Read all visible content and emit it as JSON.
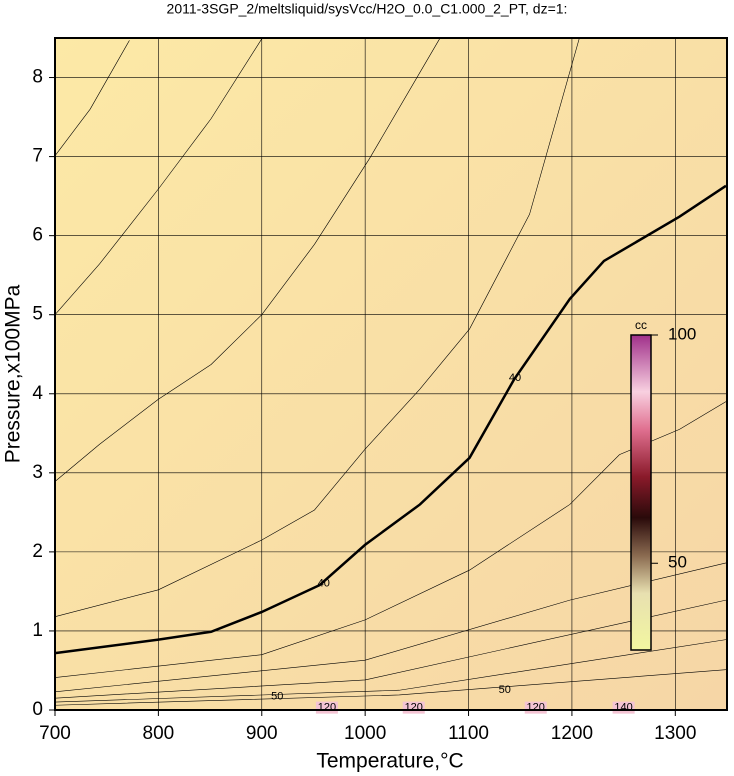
{
  "chart_data": {
    "type": "contour",
    "title": "2011-3SGP_2/meltsliquid/sysVcc/H2O_0.0_C1.000_2_PT, dz=1:",
    "x_label": "Temperature,°C",
    "y_label": "Pressure,x100MPa",
    "xlim": [
      700,
      1350
    ],
    "ylim": [
      0,
      8.5
    ],
    "xticks": [
      700,
      800,
      900,
      1000,
      1100,
      1200,
      1300
    ],
    "yticks": [
      0,
      1,
      2,
      3,
      4,
      5,
      6,
      7,
      8
    ],
    "grid": true,
    "contours": [
      {
        "bold": true,
        "x": [
          700,
          800,
          851,
          900,
          956,
          1000,
          1053,
          1101,
          1144,
          1198,
          1231,
          1304,
          1349
        ],
        "y": [
          0.72,
          0.89,
          0.99,
          1.24,
          1.58,
          2.09,
          2.6,
          3.19,
          4.18,
          5.2,
          5.68,
          6.24,
          6.63
        ]
      },
      {
        "bold": false,
        "x": [
          700,
          734,
          772
        ],
        "y": [
          7.01,
          7.6,
          8.47
        ]
      },
      {
        "bold": false,
        "x": [
          700,
          743,
          800,
          851,
          900
        ],
        "y": [
          5.0,
          5.64,
          6.59,
          7.48,
          8.49
        ]
      },
      {
        "bold": false,
        "x": [
          700,
          743,
          800,
          851,
          900,
          951,
          1004,
          1072
        ],
        "y": [
          2.89,
          3.36,
          3.93,
          4.37,
          5.0,
          5.89,
          6.97,
          8.49
        ]
      },
      {
        "bold": false,
        "x": [
          700,
          800,
          900,
          951,
          1000,
          1053,
          1101,
          1159,
          1207
        ],
        "y": [
          1.18,
          1.52,
          2.15,
          2.53,
          3.3,
          4.06,
          4.82,
          6.27,
          8.49
        ]
      },
      {
        "bold": false,
        "x": [
          700,
          900,
          1000,
          1101,
          1198,
          1246,
          1304,
          1349
        ],
        "y": [
          0.41,
          0.7,
          1.14,
          1.77,
          2.6,
          3.23,
          3.55,
          3.9
        ]
      },
      {
        "bold": false,
        "x": [
          700,
          1000,
          1198,
          1349
        ],
        "y": [
          0.23,
          0.63,
          1.39,
          1.86
        ]
      },
      {
        "bold": false,
        "x": [
          700,
          1000,
          1349
        ],
        "y": [
          0.15,
          0.38,
          1.39
        ]
      },
      {
        "bold": false,
        "x": [
          700,
          1033,
          1349
        ],
        "y": [
          0.1,
          0.25,
          0.89
        ]
      },
      {
        "bold": false,
        "x": [
          700,
          1033,
          1349
        ],
        "y": [
          0.06,
          0.19,
          0.51
        ]
      }
    ],
    "contour_labels": [
      {
        "text": 40,
        "x": 960,
        "y": 1.6
      },
      {
        "text": 40,
        "x": 1145,
        "y": 4.2
      },
      {
        "text": 50,
        "x": 915,
        "y": 0.17
      },
      {
        "text": 50,
        "x": 1135,
        "y": 0.25
      },
      {
        "text": 120,
        "x": 963,
        "y": 0.03
      },
      {
        "text": 120,
        "x": 1047,
        "y": 0.03
      },
      {
        "text": 120,
        "x": 1165,
        "y": 0.03
      },
      {
        "text": 140,
        "x": 1250,
        "y": 0.03
      }
    ],
    "colorbar": {
      "label": "cc",
      "lim": [
        31,
        100
      ],
      "ticks": [
        50,
        100
      ]
    }
  }
}
